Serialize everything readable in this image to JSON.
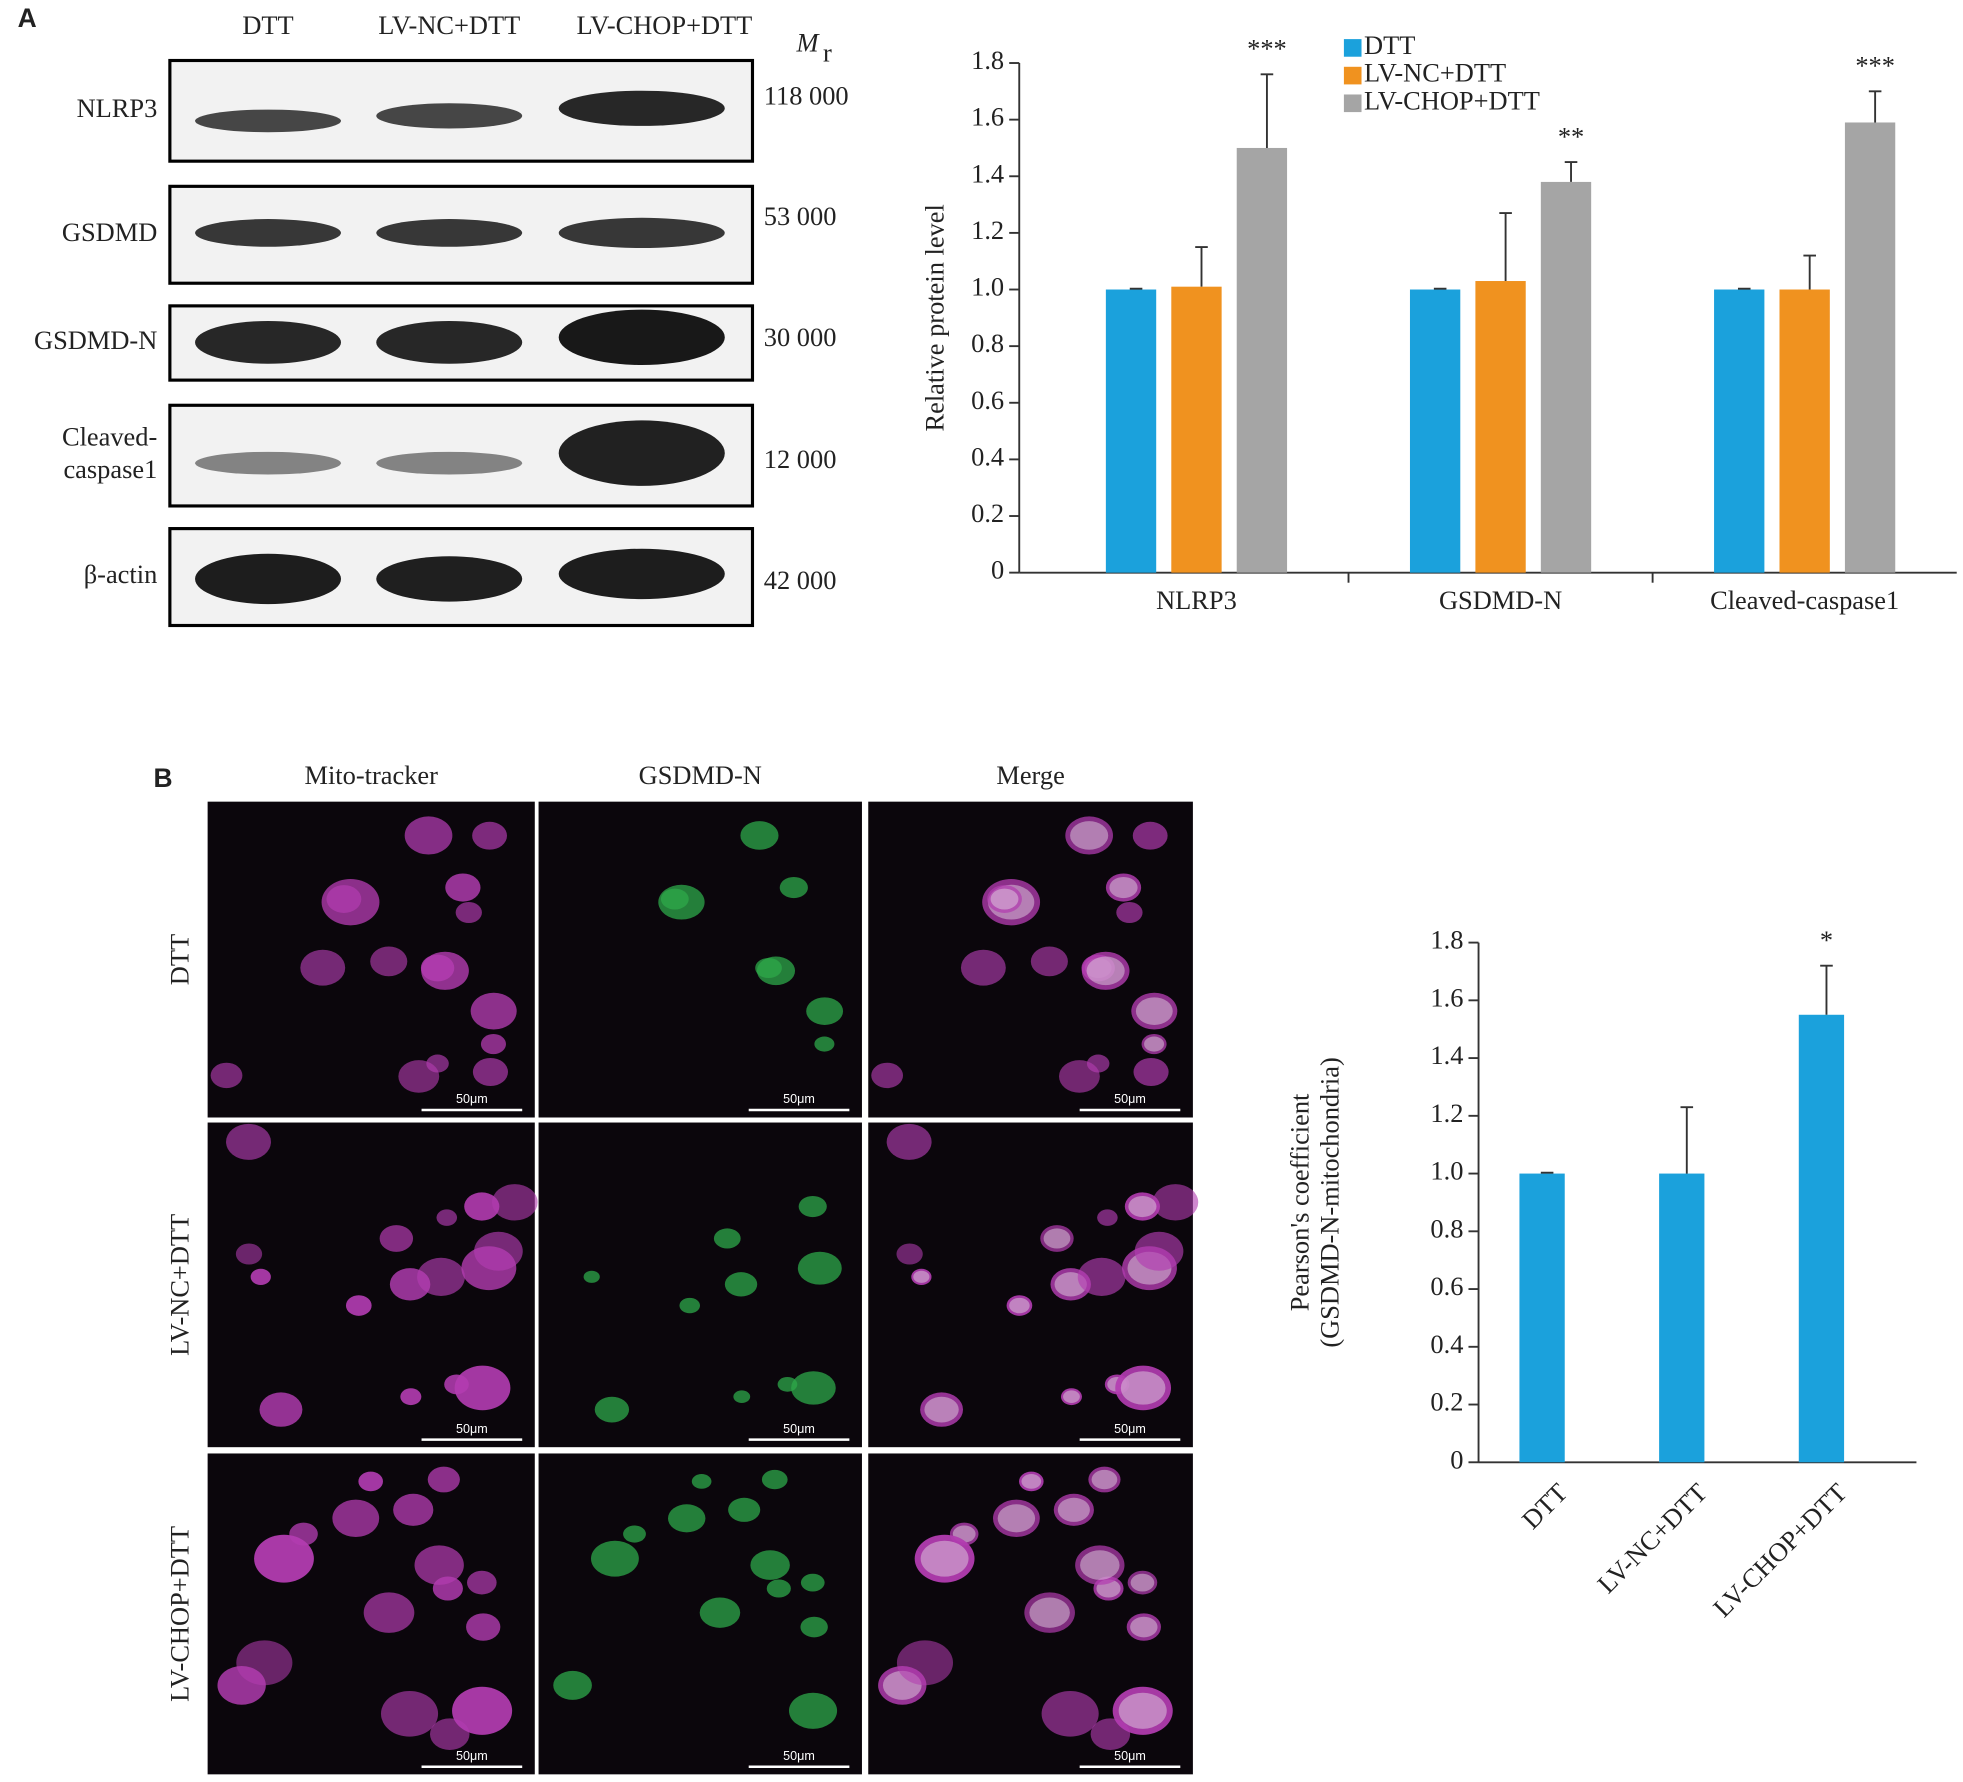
{
  "figure": {
    "panel_a_label": "A",
    "panel_b_label": "B"
  },
  "blot": {
    "lanes": [
      "DTT",
      "LV-NC+DTT",
      "LV-CHOP+DTT"
    ],
    "mr": {
      "main": "M",
      "sub": "r"
    },
    "rows": [
      {
        "label": [
          "NLRP3"
        ],
        "mr": "118 000"
      },
      {
        "label": [
          "GSDMD"
        ],
        "mr": "53 000"
      },
      {
        "label": [
          "GSDMD-N"
        ],
        "mr": "30 000"
      },
      {
        "label": [
          "Cleaved-",
          "caspase1"
        ],
        "mr": "12 000"
      },
      {
        "label": [
          "β-actin"
        ],
        "mr": "42 000"
      }
    ]
  },
  "microscopy": {
    "columns": [
      "Mito-tracker",
      "GSDMD-N",
      "Merge"
    ],
    "rows": [
      "DTT",
      "LV-NC+DTT",
      "LV-CHOP+DTT"
    ],
    "scale_bar": "50μm"
  },
  "chart_data": [
    {
      "type": "bar",
      "y_label": [
        "Relative protein level"
      ],
      "categories": [
        "NLRP3",
        "GSDMD-N",
        "Cleaved-caspase1"
      ],
      "series": [
        {
          "name": "DTT",
          "color": "#1ba1dc",
          "values": [
            1.0,
            1.0,
            1.0
          ],
          "errors": [
            0.003,
            0.003,
            0.003
          ]
        },
        {
          "name": "LV-NC+DTT",
          "color": "#f0921f",
          "values": [
            1.01,
            1.03,
            1.0
          ],
          "errors": [
            0.14,
            0.24,
            0.12
          ]
        },
        {
          "name": "LV-CHOP+DTT",
          "color": "#a5a5a5",
          "values": [
            1.5,
            1.38,
            1.59
          ],
          "errors": [
            0.26,
            0.07,
            0.11
          ],
          "annotations": [
            "***",
            "**",
            "***"
          ]
        }
      ],
      "ylim": [
        0,
        1.8
      ],
      "yticks": [
        0,
        0.2,
        0.4,
        0.6,
        0.8,
        {
          "value": 1,
          "label": "1.0"
        },
        1.2,
        1.4,
        1.6,
        1.8
      ],
      "legend_position": "upper center",
      "grid": false
    },
    {
      "type": "bar",
      "y_label": [
        "Pearson's coefficient",
        "(GSDMD-N-mitochondria)"
      ],
      "categories": [
        "DTT",
        "LV-NC+DTT",
        "LV-CHOP+DTT"
      ],
      "series": [
        {
          "color": "#1ba1dc",
          "values": [
            1.0,
            1.0,
            1.55
          ],
          "errors": [
            0.003,
            0.23,
            0.17
          ],
          "annotations": [
            null,
            null,
            "*"
          ]
        }
      ],
      "ylim": [
        0,
        1.8
      ],
      "yticks": [
        0,
        0.2,
        0.4,
        0.6,
        0.8,
        {
          "value": 1,
          "label": "1.0"
        },
        1.2,
        1.4,
        1.6,
        1.8
      ],
      "x_label_rotation": -45,
      "grid": false
    }
  ]
}
